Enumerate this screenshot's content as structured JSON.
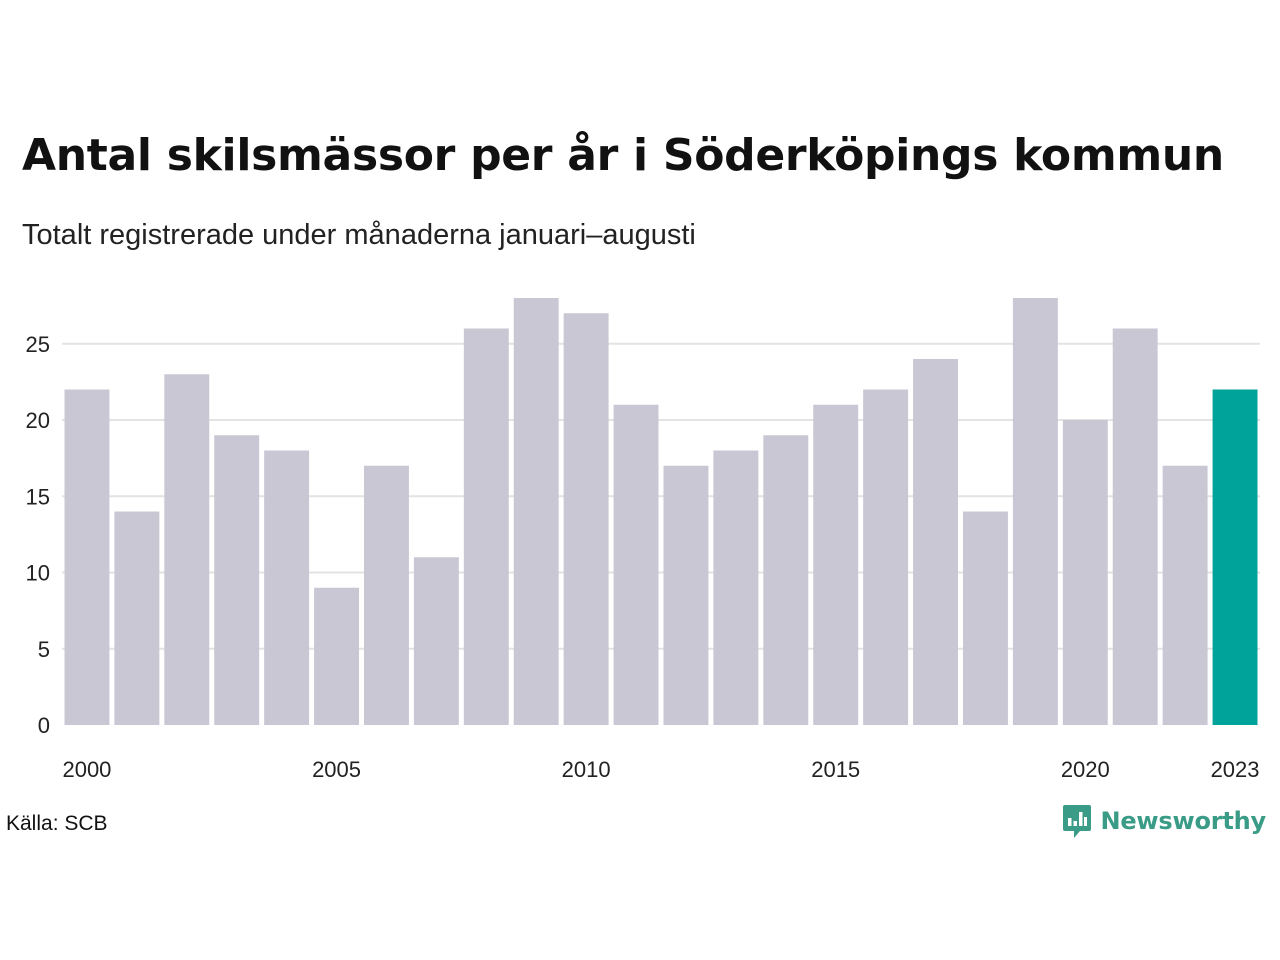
{
  "header": {
    "title": "Antal skilsmässor per år i Söderköpings kommun",
    "subtitle": "Totalt registrerade under månaderna januari–augusti"
  },
  "footer": {
    "source": "Källa: SCB",
    "brand": "Newsworthy"
  },
  "icons": {
    "brand_logo": "bar-chart-speech-bubble-icon"
  },
  "colors": {
    "bar": "#c8c7d3",
    "highlight": "#00a39a",
    "grid": "#e3e3e3",
    "brand": "#3a9b86"
  },
  "chart_data": {
    "type": "bar",
    "x": [
      2000,
      2001,
      2002,
      2003,
      2004,
      2005,
      2006,
      2007,
      2008,
      2009,
      2010,
      2011,
      2012,
      2013,
      2014,
      2015,
      2016,
      2017,
      2018,
      2019,
      2020,
      2021,
      2022,
      2023
    ],
    "values": [
      22,
      14,
      23,
      19,
      18,
      9,
      17,
      11,
      26,
      28,
      27,
      21,
      17,
      18,
      19,
      21,
      22,
      24,
      14,
      28,
      20,
      26,
      17,
      22
    ],
    "highlight": [
      2023
    ],
    "x_tick_labels": [
      "2000",
      "2005",
      "2010",
      "2015",
      "2020",
      "2023"
    ],
    "y_ticks": [
      0,
      5,
      10,
      15,
      20,
      25
    ],
    "ylim": [
      0,
      28
    ],
    "grid": "horizontal",
    "legend": "none"
  }
}
